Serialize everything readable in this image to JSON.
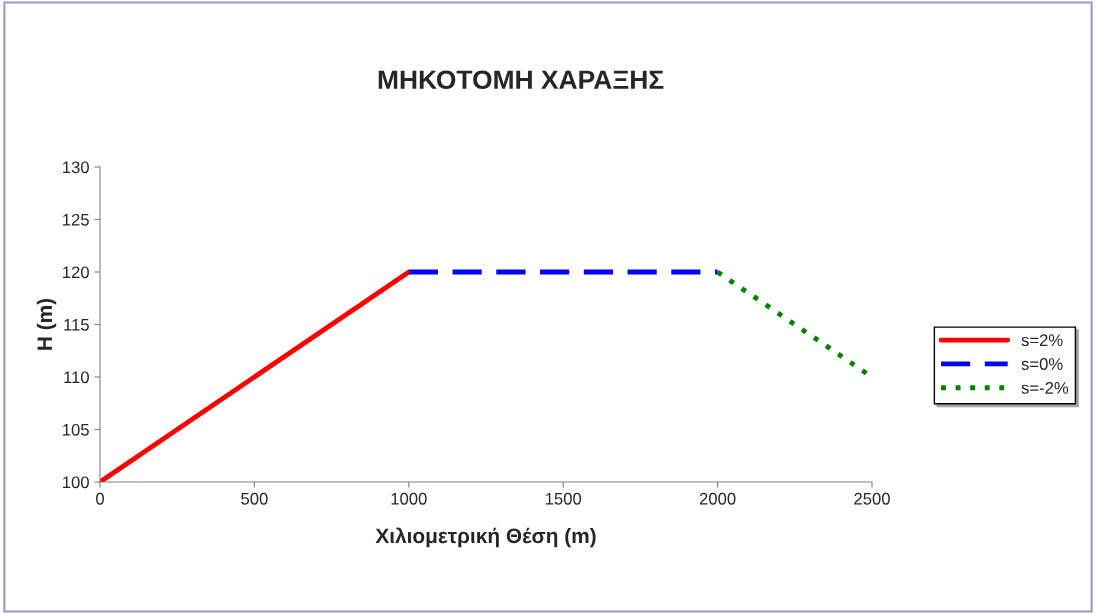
{
  "chart_data": {
    "type": "line",
    "title": "ΜΗΚΟΤΟΜΗ ΧΑΡΑΞΗΣ",
    "xlabel": "Χιλιομετρική Θέση (m)",
    "ylabel": "H (m)",
    "xlim": [
      0,
      2500
    ],
    "xticks": [
      0,
      500,
      1000,
      1500,
      2000,
      2500
    ],
    "ylim": [
      100,
      130
    ],
    "yticks": [
      100,
      105,
      110,
      115,
      120,
      125,
      130
    ],
    "grid": false,
    "legend": "right",
    "marker": "none",
    "series": [
      {
        "name": "s=2%",
        "color": "#ff0000",
        "line_style": "solid",
        "x": [
          0,
          1000
        ],
        "values": [
          100,
          120
        ]
      },
      {
        "name": "s=0%",
        "color": "#0000ff",
        "line_style": "dashed",
        "x": [
          1000,
          2000
        ],
        "values": [
          120,
          120
        ]
      },
      {
        "name": "s=-2%",
        "color": "#008000",
        "line_style": "dotted",
        "x": [
          2000,
          2500
        ],
        "values": [
          120,
          110
        ]
      }
    ]
  }
}
